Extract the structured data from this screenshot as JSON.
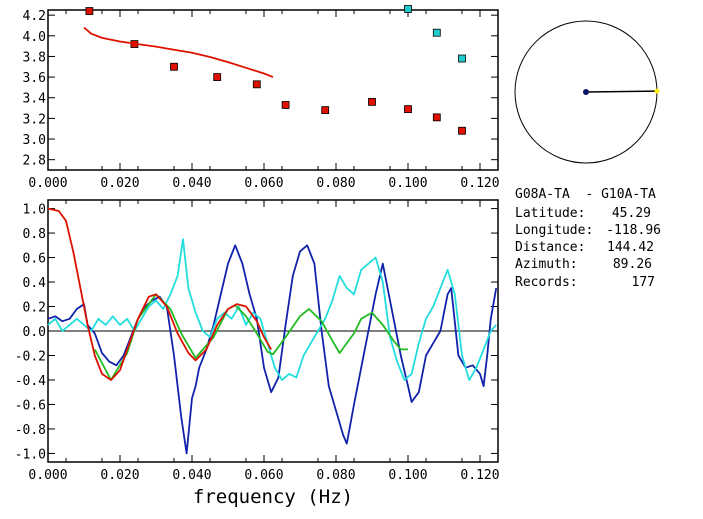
{
  "chart_data": [
    {
      "type": "scatter",
      "xlim": [
        0.0,
        0.125
      ],
      "ylim": [
        2.7,
        4.25
      ],
      "x_ticks": [
        "0.000",
        "0.020",
        "0.040",
        "0.060",
        "0.080",
        "0.100",
        "0.120"
      ],
      "y_ticks": [
        "2.8",
        "3.0",
        "3.2",
        "3.4",
        "3.6",
        "3.8",
        "4.0",
        "4.2"
      ],
      "grid": false,
      "series": [
        {
          "kind": "points",
          "color": "#dd1100",
          "points": [
            [
              0.0115,
              4.24
            ],
            [
              0.024,
              3.92
            ],
            [
              0.035,
              3.7
            ],
            [
              0.047,
              3.6
            ],
            [
              0.058,
              3.53
            ],
            [
              0.066,
              3.33
            ],
            [
              0.077,
              3.28
            ],
            [
              0.09,
              3.36
            ],
            [
              0.1,
              3.29
            ],
            [
              0.108,
              3.21
            ],
            [
              0.115,
              3.08
            ]
          ]
        },
        {
          "kind": "points",
          "color": "#22cccc",
          "points": [
            [
              0.1,
              4.26
            ],
            [
              0.108,
              4.03
            ],
            [
              0.115,
              3.78
            ]
          ]
        },
        {
          "kind": "line",
          "color": "#dd1100",
          "points": [
            [
              0.01,
              4.08
            ],
            [
              0.012,
              4.02
            ],
            [
              0.015,
              3.98
            ],
            [
              0.02,
              3.945
            ],
            [
              0.025,
              3.92
            ],
            [
              0.03,
              3.895
            ],
            [
              0.035,
              3.865
            ],
            [
              0.04,
              3.835
            ],
            [
              0.045,
              3.795
            ],
            [
              0.05,
              3.745
            ],
            [
              0.055,
              3.69
            ],
            [
              0.06,
              3.635
            ],
            [
              0.0625,
              3.6
            ]
          ]
        }
      ]
    },
    {
      "type": "line",
      "xlim": [
        0.0,
        0.125
      ],
      "ylim": [
        -1.07,
        1.07
      ],
      "x_ticks": [
        "0.000",
        "0.020",
        "0.040",
        "0.060",
        "0.080",
        "0.100",
        "0.120"
      ],
      "y_ticks": [
        "1.0",
        "0.8",
        "0.6",
        "0.4",
        "0.2",
        "0.0",
        "-0.2",
        "-0.4",
        "-0.6",
        "-0.8",
        "-1.0"
      ],
      "xlabel": "frequency (Hz)",
      "zero_line": true,
      "grid": false,
      "series": [
        {
          "color": "#1122aa",
          "points": [
            [
              0.0,
              0.1
            ],
            [
              0.002,
              0.12
            ],
            [
              0.004,
              0.08
            ],
            [
              0.006,
              0.1
            ],
            [
              0.008,
              0.18
            ],
            [
              0.01,
              0.22
            ],
            [
              0.011,
              0.05
            ],
            [
              0.013,
              -0.02
            ],
            [
              0.015,
              -0.18
            ],
            [
              0.017,
              -0.25
            ],
            [
              0.019,
              -0.28
            ],
            [
              0.021,
              -0.2
            ],
            [
              0.023,
              -0.05
            ],
            [
              0.025,
              0.1
            ],
            [
              0.027,
              0.2
            ],
            [
              0.029,
              0.25
            ],
            [
              0.031,
              0.28
            ],
            [
              0.033,
              0.2
            ],
            [
              0.035,
              -0.2
            ],
            [
              0.037,
              -0.7
            ],
            [
              0.0385,
              -1.0
            ],
            [
              0.04,
              -0.55
            ],
            [
              0.041,
              -0.45
            ],
            [
              0.042,
              -0.3
            ],
            [
              0.044,
              -0.15
            ],
            [
              0.046,
              0.05
            ],
            [
              0.048,
              0.3
            ],
            [
              0.05,
              0.55
            ],
            [
              0.052,
              0.7
            ],
            [
              0.054,
              0.55
            ],
            [
              0.056,
              0.3
            ],
            [
              0.058,
              0.1
            ],
            [
              0.06,
              -0.3
            ],
            [
              0.062,
              -0.5
            ],
            [
              0.064,
              -0.38
            ],
            [
              0.066,
              0.05
            ],
            [
              0.068,
              0.45
            ],
            [
              0.07,
              0.65
            ],
            [
              0.072,
              0.7
            ],
            [
              0.074,
              0.55
            ],
            [
              0.076,
              0.0
            ],
            [
              0.078,
              -0.45
            ],
            [
              0.08,
              -0.65
            ],
            [
              0.082,
              -0.85
            ],
            [
              0.083,
              -0.92
            ],
            [
              0.085,
              -0.6
            ],
            [
              0.087,
              -0.3
            ],
            [
              0.089,
              0.0
            ],
            [
              0.091,
              0.3
            ],
            [
              0.093,
              0.55
            ],
            [
              0.094,
              0.4
            ],
            [
              0.096,
              0.1
            ],
            [
              0.098,
              -0.2
            ],
            [
              0.1,
              -0.45
            ],
            [
              0.101,
              -0.58
            ],
            [
              0.103,
              -0.5
            ],
            [
              0.105,
              -0.2
            ],
            [
              0.107,
              -0.1
            ],
            [
              0.109,
              0.0
            ],
            [
              0.111,
              0.3
            ],
            [
              0.112,
              0.35
            ],
            [
              0.114,
              -0.2
            ],
            [
              0.116,
              -0.3
            ],
            [
              0.118,
              -0.28
            ],
            [
              0.12,
              -0.35
            ],
            [
              0.121,
              -0.45
            ],
            [
              0.122,
              -0.2
            ],
            [
              0.123,
              0.1
            ],
            [
              0.1245,
              0.35
            ]
          ]
        },
        {
          "color": "#22dddd",
          "points": [
            [
              0.0,
              0.05
            ],
            [
              0.002,
              0.1
            ],
            [
              0.004,
              0.0
            ],
            [
              0.006,
              0.05
            ],
            [
              0.008,
              0.1
            ],
            [
              0.01,
              0.05
            ],
            [
              0.012,
              0.0
            ],
            [
              0.014,
              0.1
            ],
            [
              0.016,
              0.05
            ],
            [
              0.018,
              0.12
            ],
            [
              0.02,
              0.05
            ],
            [
              0.022,
              0.1
            ],
            [
              0.024,
              0.0
            ],
            [
              0.026,
              0.1
            ],
            [
              0.028,
              0.2
            ],
            [
              0.03,
              0.25
            ],
            [
              0.032,
              0.18
            ],
            [
              0.034,
              0.3
            ],
            [
              0.036,
              0.45
            ],
            [
              0.0375,
              0.75
            ],
            [
              0.039,
              0.35
            ],
            [
              0.041,
              0.15
            ],
            [
              0.043,
              0.0
            ],
            [
              0.045,
              -0.05
            ],
            [
              0.047,
              0.1
            ],
            [
              0.049,
              0.15
            ],
            [
              0.051,
              0.1
            ],
            [
              0.053,
              0.2
            ],
            [
              0.055,
              0.05
            ],
            [
              0.057,
              0.15
            ],
            [
              0.059,
              0.1
            ],
            [
              0.061,
              -0.1
            ],
            [
              0.063,
              -0.3
            ],
            [
              0.065,
              -0.4
            ],
            [
              0.067,
              -0.35
            ],
            [
              0.069,
              -0.38
            ],
            [
              0.071,
              -0.2
            ],
            [
              0.073,
              -0.1
            ],
            [
              0.075,
              0.0
            ],
            [
              0.077,
              0.1
            ],
            [
              0.079,
              0.25
            ],
            [
              0.081,
              0.45
            ],
            [
              0.083,
              0.35
            ],
            [
              0.085,
              0.3
            ],
            [
              0.087,
              0.5
            ],
            [
              0.089,
              0.55
            ],
            [
              0.091,
              0.6
            ],
            [
              0.093,
              0.4
            ],
            [
              0.095,
              -0.05
            ],
            [
              0.097,
              -0.25
            ],
            [
              0.099,
              -0.4
            ],
            [
              0.101,
              -0.35
            ],
            [
              0.103,
              -0.1
            ],
            [
              0.105,
              0.1
            ],
            [
              0.107,
              0.2
            ],
            [
              0.109,
              0.35
            ],
            [
              0.111,
              0.5
            ],
            [
              0.113,
              0.3
            ],
            [
              0.115,
              -0.2
            ],
            [
              0.117,
              -0.4
            ],
            [
              0.119,
              -0.3
            ],
            [
              0.121,
              -0.15
            ],
            [
              0.123,
              0.0
            ],
            [
              0.1245,
              0.05
            ]
          ]
        },
        {
          "color": "#22bb22",
          "points": [
            [
              0.013,
              -0.15
            ],
            [
              0.0175,
              -0.4
            ],
            [
              0.022,
              -0.18
            ],
            [
              0.025,
              0.1
            ],
            [
              0.03,
              0.3
            ],
            [
              0.034,
              0.18
            ],
            [
              0.037,
              -0.02
            ],
            [
              0.041,
              -0.22
            ],
            [
              0.046,
              -0.05
            ],
            [
              0.05,
              0.18
            ],
            [
              0.052,
              0.21
            ],
            [
              0.055,
              0.12
            ],
            [
              0.058,
              -0.02
            ],
            [
              0.061,
              -0.17
            ],
            [
              0.0625,
              -0.19
            ],
            [
              0.066,
              -0.05
            ],
            [
              0.07,
              0.12
            ],
            [
              0.0725,
              0.18
            ],
            [
              0.076,
              0.08
            ],
            [
              0.079,
              -0.08
            ],
            [
              0.081,
              -0.18
            ],
            [
              0.085,
              -0.02
            ],
            [
              0.087,
              0.1
            ],
            [
              0.09,
              0.15
            ],
            [
              0.093,
              0.05
            ],
            [
              0.096,
              -0.08
            ],
            [
              0.098,
              -0.15
            ],
            [
              0.1,
              -0.15
            ]
          ]
        },
        {
          "color": "#dd1100",
          "points": [
            [
              0.0,
              1.0
            ],
            [
              0.003,
              0.98
            ],
            [
              0.005,
              0.9
            ],
            [
              0.007,
              0.65
            ],
            [
              0.009,
              0.35
            ],
            [
              0.011,
              0.05
            ],
            [
              0.013,
              -0.2
            ],
            [
              0.015,
              -0.35
            ],
            [
              0.0175,
              -0.4
            ],
            [
              0.02,
              -0.32
            ],
            [
              0.022,
              -0.15
            ],
            [
              0.025,
              0.1
            ],
            [
              0.028,
              0.28
            ],
            [
              0.03,
              0.3
            ],
            [
              0.033,
              0.2
            ],
            [
              0.036,
              -0.02
            ],
            [
              0.039,
              -0.18
            ],
            [
              0.041,
              -0.24
            ],
            [
              0.044,
              -0.15
            ],
            [
              0.047,
              0.05
            ],
            [
              0.05,
              0.18
            ],
            [
              0.0525,
              0.22
            ],
            [
              0.055,
              0.2
            ],
            [
              0.058,
              0.08
            ],
            [
              0.06,
              -0.05
            ],
            [
              0.062,
              -0.15
            ]
          ]
        }
      ]
    }
  ],
  "polar": {
    "station_dot_color": "#0a1566",
    "end_dot_color": "#ffee00",
    "azimuth": 89.26
  },
  "info": {
    "title": "G08A-TA  - G10A-TA",
    "rows": [
      {
        "label": "Latitude:",
        "value": "45.29"
      },
      {
        "label": "Longitude:",
        "value": "-118.96"
      },
      {
        "label": "Distance:",
        "value": "144.42"
      },
      {
        "label": "Azimuth:",
        "value": "89.26"
      },
      {
        "label": "Records:",
        "value": "177"
      }
    ]
  }
}
